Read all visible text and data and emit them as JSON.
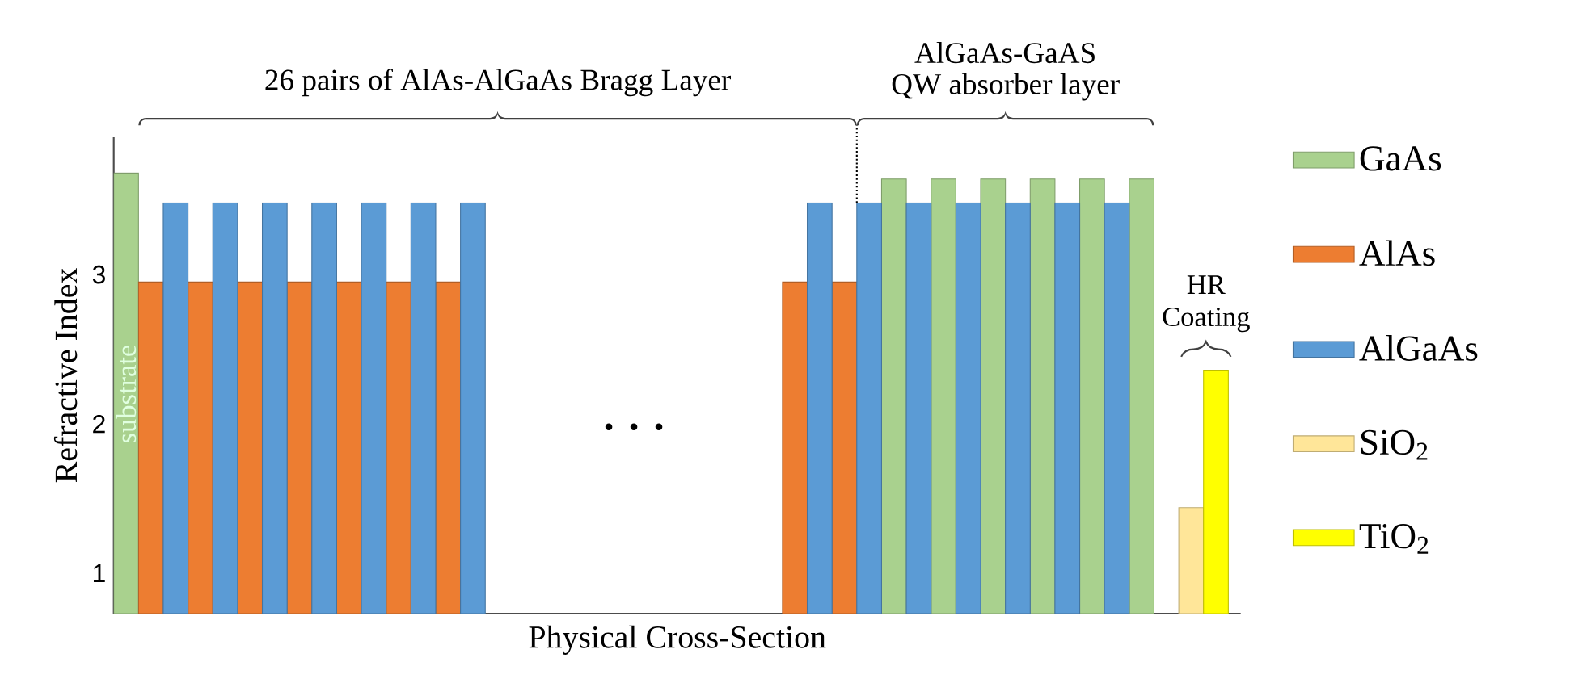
{
  "chart_data": {
    "type": "bar",
    "xlabel": "Physical Cross-Section",
    "ylabel": "Refractive Index",
    "categories": [
      null,
      null,
      null,
      null,
      null,
      null,
      null,
      null,
      null,
      null,
      null,
      null,
      null,
      null,
      null,
      null,
      null,
      null,
      null,
      null,
      null,
      null,
      null,
      null,
      null,
      null,
      null,
      null,
      null,
      null,
      null,
      null,
      null,
      null,
      null,
      null,
      null,
      null,
      null,
      null,
      null,
      null,
      null,
      null,
      null
    ],
    "series": [
      {
        "name": "GaAs",
        "color": "#a9d18e",
        "values": [
          3.68,
          null,
          null,
          null,
          null,
          null,
          null,
          null,
          null,
          null,
          null,
          null,
          null,
          null,
          null,
          null,
          null,
          null,
          null,
          null,
          null,
          null,
          null,
          null,
          null,
          null,
          null,
          null,
          null,
          null,
          null,
          3.64,
          null,
          3.64,
          null,
          3.64,
          null,
          3.64,
          null,
          3.64,
          null,
          3.64,
          null,
          null,
          null
        ]
      },
      {
        "name": "AlAs",
        "color": "#ed7d31",
        "values": [
          null,
          2.95,
          null,
          2.95,
          null,
          2.95,
          null,
          2.95,
          null,
          2.95,
          null,
          2.95,
          null,
          2.95,
          null,
          null,
          null,
          null,
          null,
          null,
          null,
          null,
          null,
          null,
          null,
          null,
          null,
          2.95,
          null,
          2.95,
          null,
          null,
          null,
          null,
          null,
          null,
          null,
          null,
          null,
          null,
          null,
          null,
          null,
          null,
          null
        ]
      },
      {
        "name": "AlGaAs",
        "color": "#5b9bd5",
        "values": [
          null,
          null,
          3.48,
          null,
          3.48,
          null,
          3.48,
          null,
          3.48,
          null,
          3.48,
          null,
          3.48,
          null,
          3.48,
          null,
          null,
          null,
          null,
          null,
          null,
          null,
          null,
          null,
          null,
          null,
          null,
          null,
          3.48,
          null,
          3.48,
          null,
          3.48,
          null,
          3.48,
          null,
          3.48,
          null,
          3.48,
          null,
          3.48,
          null,
          null,
          null,
          null
        ]
      },
      {
        "name": "SiO$_{2}$",
        "color": "#ffe699",
        "values": [
          null,
          null,
          null,
          null,
          null,
          null,
          null,
          null,
          null,
          null,
          null,
          null,
          null,
          null,
          null,
          null,
          null,
          null,
          null,
          null,
          null,
          null,
          null,
          null,
          null,
          null,
          null,
          null,
          null,
          null,
          null,
          null,
          null,
          null,
          null,
          null,
          null,
          null,
          null,
          null,
          null,
          null,
          null,
          1.44,
          null
        ]
      },
      {
        "name": "TiO$_{2}$",
        "color": "#ffff00",
        "values": [
          null,
          null,
          null,
          null,
          null,
          null,
          null,
          null,
          null,
          null,
          null,
          null,
          null,
          null,
          null,
          null,
          null,
          null,
          null,
          null,
          null,
          null,
          null,
          null,
          null,
          null,
          null,
          null,
          null,
          null,
          null,
          null,
          null,
          null,
          null,
          null,
          null,
          null,
          null,
          null,
          null,
          null,
          null,
          null,
          2.36
        ]
      }
    ],
    "ylim": [
      0.73,
      3.92
    ],
    "yticks": [
      1,
      2,
      3
    ],
    "tick_labels": "y",
    "legend": "right",
    "annotations": [
      "26 pairs of AlAs-AlGaAs Bragg Layer",
      "AlGaAs-GaAS",
      "QW absorber layer",
      "HR Coating",
      "substrate",
      ". . ."
    ]
  }
}
